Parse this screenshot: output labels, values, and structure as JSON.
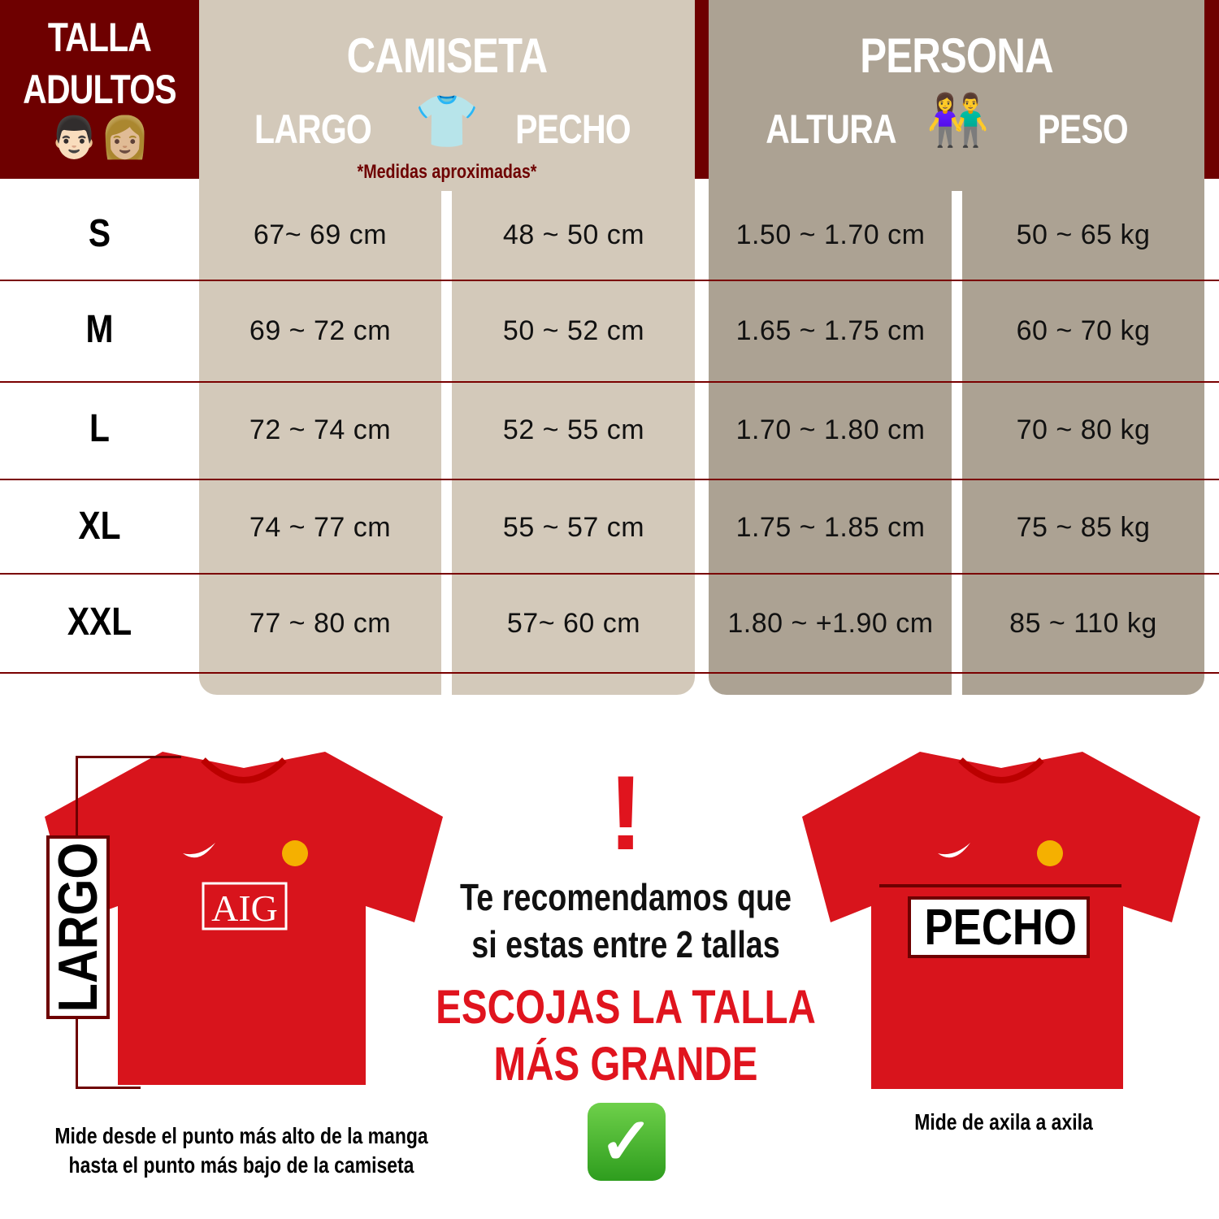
{
  "header": {
    "title_line1": "TALLA",
    "title_line2": "ADULTOS",
    "emoji": "👨🏻👩🏼",
    "camiseta": "CAMISETA",
    "persona": "PERSONA",
    "largo": "LARGO",
    "pecho": "PECHO",
    "altura": "ALTURA",
    "peso": "PESO",
    "shirt_emoji": "👕",
    "people_emoji": "👫",
    "note": "*Medidas aproximadas*"
  },
  "rows": [
    {
      "size": "S",
      "largo": "67~ 69 cm",
      "pecho": "48 ~ 50 cm",
      "altura": "1.50 ~ 1.70 cm",
      "peso": "50 ~ 65 kg"
    },
    {
      "size": "M",
      "largo": "69 ~ 72 cm",
      "pecho": "50 ~ 52 cm",
      "altura": "1.65 ~ 1.75 cm",
      "peso": "60 ~ 70 kg"
    },
    {
      "size": "L",
      "largo": "72 ~ 74 cm",
      "pecho": "52 ~ 55 cm",
      "altura": "1.70 ~ 1.80 cm",
      "peso": "70 ~ 80 kg"
    },
    {
      "size": "XL",
      "largo": "74 ~ 77 cm",
      "pecho": "55 ~ 57 cm",
      "altura": "1.75 ~ 1.85 cm",
      "peso": "75 ~ 85 kg"
    },
    {
      "size": "XXL",
      "largo": "77 ~ 80 cm",
      "pecho": "57~ 60 cm",
      "altura": "1.80 ~ +1.90 cm",
      "peso": "85 ~ 110 kg"
    }
  ],
  "guide": {
    "largo_label": "LARGO",
    "largo_text1": "Mide desde el punto más alto de la manga",
    "largo_text2": "hasta el punto más bajo de la camiseta",
    "pecho_label": "PECHO",
    "pecho_text": "Mide de axila a axila",
    "sponsor": "AIG",
    "warning_icon": "!",
    "rec1": "Te recomendamos que",
    "rec2": "si estas entre 2 tallas",
    "rec3": "ESCOJAS LA TALLA",
    "rec4": "MÁS GRANDE",
    "check_icon": "✓"
  },
  "colors": {
    "brand": "#6e0000",
    "accent_red": "#e0141e",
    "beige": "#d3c9ba",
    "grey": "#aca293"
  }
}
